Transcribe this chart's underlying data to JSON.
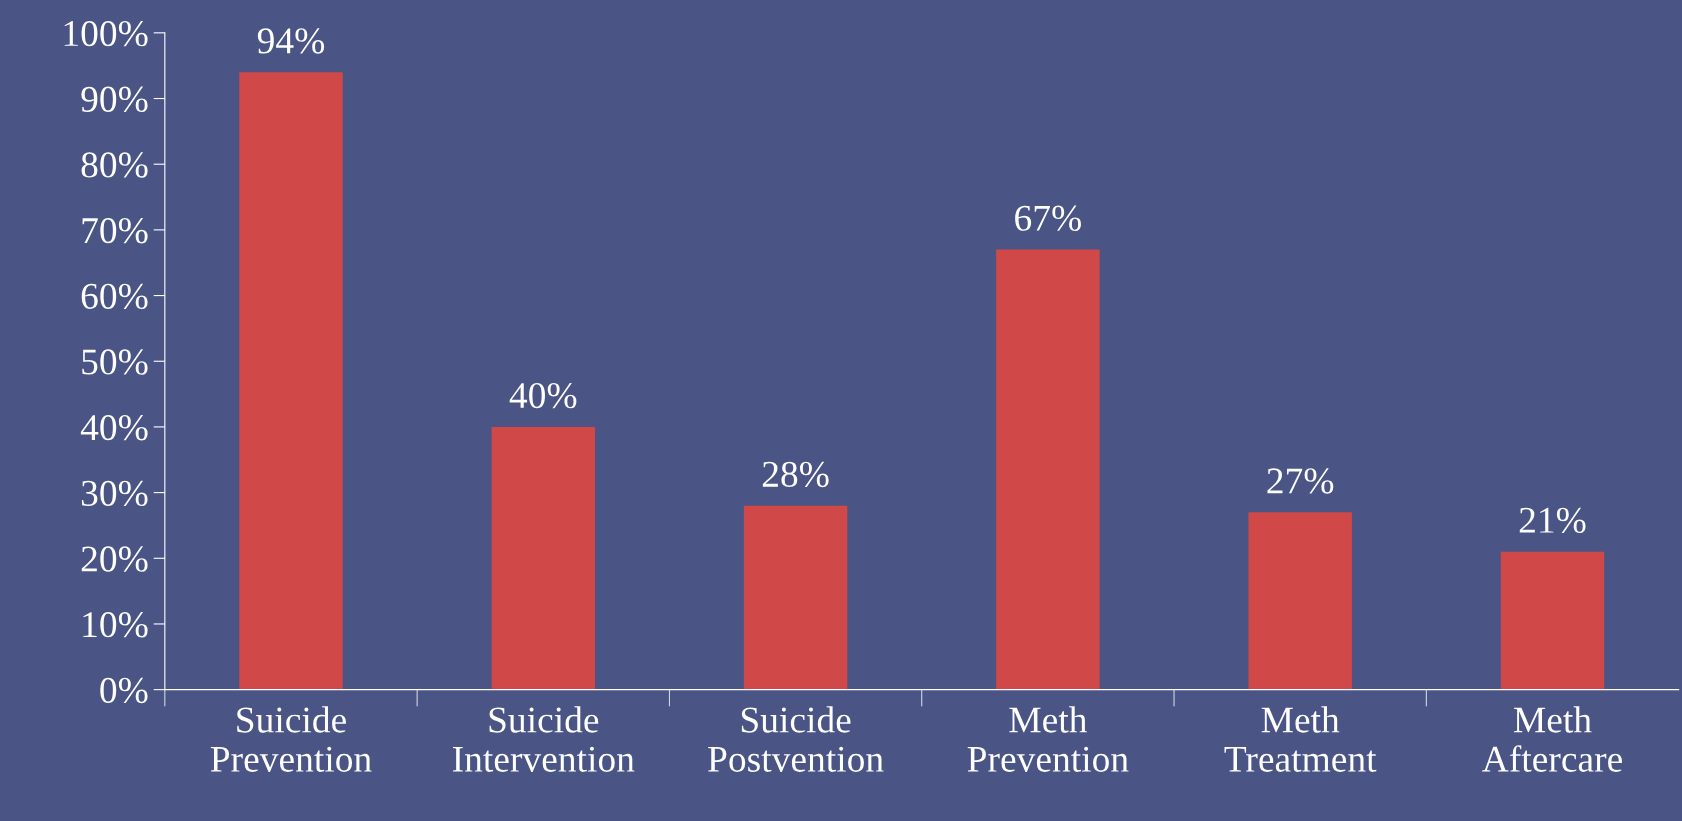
{
  "chart_data": {
    "type": "bar",
    "categories": [
      "Suicide\nPrevention",
      "Suicide\nIntervention",
      "Suicide\nPostvention",
      "Meth\nPrevention",
      "Meth\nTreatment",
      "Meth\nAftercare"
    ],
    "values": [
      94,
      40,
      28,
      67,
      27,
      21
    ],
    "color": "#d04848",
    "ylim": [
      0,
      100
    ],
    "yticks": [
      {
        "value": 0,
        "label": "0%"
      },
      {
        "value": 10,
        "label": "10%"
      },
      {
        "value": 20,
        "label": "20%"
      },
      {
        "value": 30,
        "label": "30%"
      },
      {
        "value": 40,
        "label": "40%"
      },
      {
        "value": 50,
        "label": "50%"
      },
      {
        "value": 60,
        "label": "60%"
      },
      {
        "value": 70,
        "label": "70%"
      },
      {
        "value": 80,
        "label": "80%"
      },
      {
        "value": 90,
        "label": "90%"
      },
      {
        "value": 100,
        "label": "100%"
      }
    ],
    "value_labels": [
      "94%",
      "40%",
      "28%",
      "67%",
      "27%",
      "21%"
    ],
    "grid": false,
    "legend": false
  }
}
